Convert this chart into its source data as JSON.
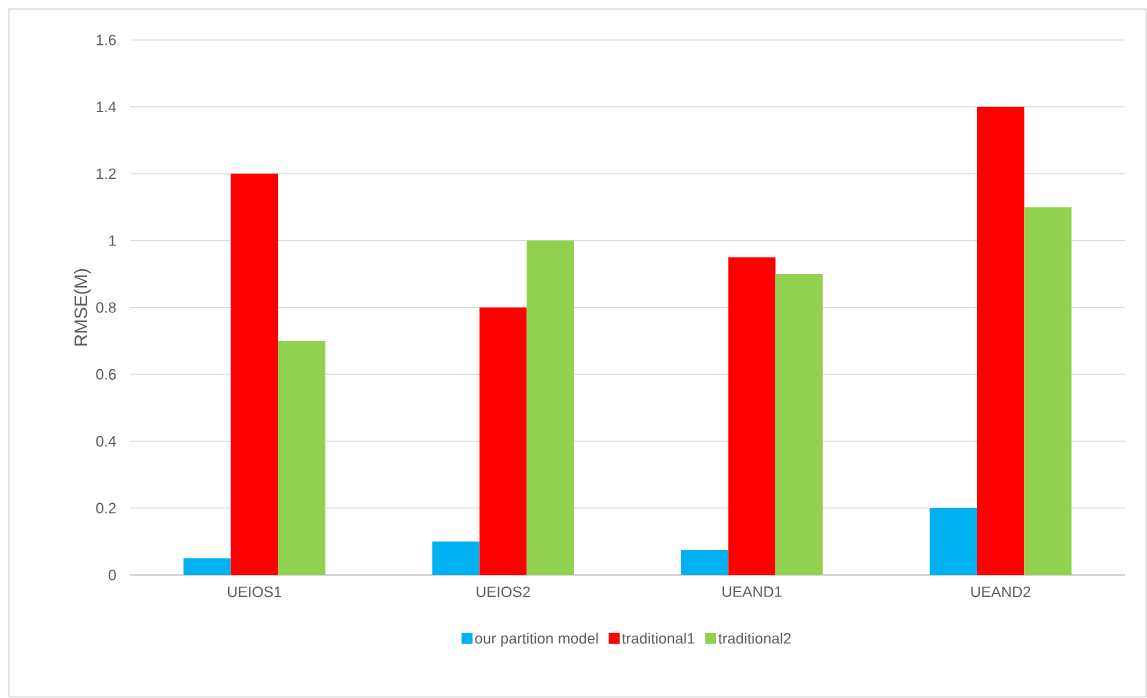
{
  "chart_data": {
    "type": "bar",
    "ylabel": "RMSE(M)",
    "categories": [
      "UEIOS1",
      "UEIOS2",
      "UEAND1",
      "UEAND2"
    ],
    "series": [
      {
        "name": "our partition model",
        "color": "#00b0f0",
        "values": [
          0.05,
          0.1,
          0.075,
          0.2
        ]
      },
      {
        "name": "traditional1",
        "color": "#ff0000",
        "values": [
          1.2,
          0.8,
          0.95,
          1.4
        ]
      },
      {
        "name": "traditional2",
        "color": "#92d050",
        "values": [
          0.7,
          1.0,
          0.9,
          1.1
        ]
      }
    ],
    "ylim": [
      0,
      1.6
    ],
    "yticks": [
      0,
      0.2,
      0.4,
      0.6,
      0.8,
      1,
      1.2,
      1.4,
      1.6
    ],
    "grid": "y",
    "legend": "bottom"
  }
}
